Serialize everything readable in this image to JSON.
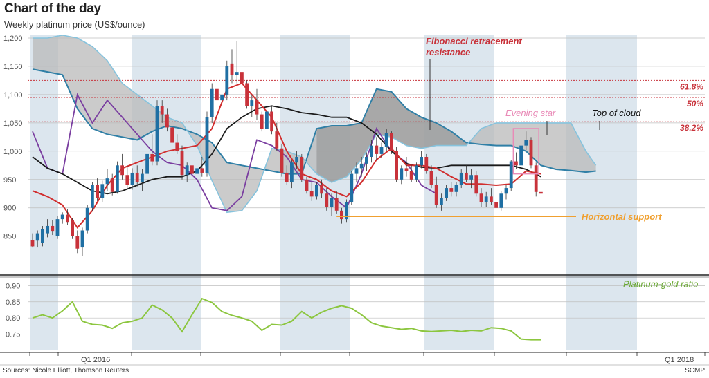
{
  "header": {
    "title": "Chart of the day",
    "subtitle": "Weekly platinum price (US$/ounce)"
  },
  "footer": {
    "sources": "Sources: Nicole Elliott, Thomson Reuters",
    "credit": "SCMP"
  },
  "colors": {
    "shade_band": "#dce6ee",
    "cloud_fill": "#b9b9b9",
    "cloud_dark": "#8c8c8c",
    "cloud_edge": "#2f7fa6",
    "cloud_edge_light": "#86c3dd",
    "candle_up": "#1f6fa3",
    "candle_down": "#c8323a",
    "red_line": "#d12e2e",
    "black_line": "#1a1a1a",
    "purple_line": "#7a3ea0",
    "fib_line": "#c8323a",
    "support": "#f0a030",
    "ratio": "#8cc63f",
    "evening_star": "#e98ab7"
  },
  "chart_data": [
    {
      "type": "line",
      "title": "Weekly platinum price (US$/ounce)",
      "ylim": [
        813,
        1200
      ],
      "yticks": [
        850,
        900,
        950,
        "1,000",
        "1,050",
        "1,100",
        "1,150",
        "1,200"
      ],
      "xticks": [
        "Q1 2016",
        "Q1 2018"
      ],
      "n_weeks": 113,
      "candles": [
        [
          0,
          843,
          855,
          830,
          832
        ],
        [
          1,
          842,
          860,
          830,
          855
        ],
        [
          2,
          838,
          868,
          832,
          862
        ],
        [
          3,
          855,
          880,
          848,
          868
        ],
        [
          4,
          868,
          878,
          852,
          858
        ],
        [
          5,
          850,
          885,
          845,
          880
        ],
        [
          6,
          880,
          892,
          872,
          888
        ],
        [
          7,
          888,
          898,
          870,
          875
        ],
        [
          8,
          878,
          882,
          845,
          850
        ],
        [
          9,
          850,
          860,
          820,
          828
        ],
        [
          10,
          830,
          865,
          815,
          860
        ],
        [
          11,
          860,
          905,
          855,
          900
        ],
        [
          12,
          900,
          945,
          895,
          940
        ],
        [
          13,
          940,
          952,
          912,
          918
        ],
        [
          14,
          918,
          948,
          910,
          942
        ],
        [
          15,
          942,
          968,
          930,
          952
        ],
        [
          16,
          952,
          960,
          922,
          928
        ],
        [
          17,
          928,
          982,
          925,
          975
        ],
        [
          18,
          975,
          995,
          950,
          958
        ],
        [
          19,
          958,
          975,
          935,
          940
        ],
        [
          20,
          940,
          970,
          932,
          962
        ],
        [
          21,
          962,
          975,
          938,
          945
        ],
        [
          22,
          945,
          968,
          930,
          960
        ],
        [
          23,
          960,
          1000,
          955,
          995
        ],
        [
          24,
          995,
          1030,
          975,
          982
        ],
        [
          25,
          982,
          1090,
          975,
          1080
        ],
        [
          26,
          1080,
          1090,
          1050,
          1065
        ],
        [
          27,
          1065,
          1075,
          1035,
          1042
        ],
        [
          28,
          1042,
          1050,
          1010,
          1015
        ],
        [
          29,
          1015,
          1030,
          995,
          1000
        ],
        [
          30,
          1000,
          1010,
          950,
          958
        ],
        [
          31,
          958,
          980,
          945,
          975
        ],
        [
          32,
          975,
          990,
          952,
          960
        ],
        [
          33,
          960,
          980,
          948,
          970
        ],
        [
          34,
          970,
          990,
          955,
          962
        ],
        [
          35,
          962,
          1070,
          955,
          1060
        ],
        [
          36,
          1060,
          1120,
          1050,
          1110
        ],
        [
          37,
          1110,
          1130,
          1080,
          1090
        ],
        [
          38,
          1090,
          1110,
          1070,
          1100
        ],
        [
          39,
          1100,
          1160,
          1090,
          1150
        ],
        [
          40,
          1155,
          1180,
          1120,
          1135
        ],
        [
          41,
          1135,
          1195,
          1120,
          1140
        ],
        [
          42,
          1140,
          1155,
          1110,
          1120
        ],
        [
          43,
          1120,
          1125,
          1075,
          1080
        ],
        [
          44,
          1080,
          1100,
          1060,
          1090
        ],
        [
          45,
          1090,
          1110,
          1055,
          1065
        ],
        [
          46,
          1065,
          1070,
          1035,
          1040
        ],
        [
          47,
          1040,
          1075,
          1030,
          1070
        ],
        [
          48,
          1070,
          1080,
          1030,
          1035
        ],
        [
          49,
          1035,
          1050,
          1000,
          1005
        ],
        [
          50,
          1005,
          1012,
          955,
          962
        ],
        [
          51,
          962,
          975,
          940,
          945
        ],
        [
          52,
          945,
          985,
          935,
          980
        ],
        [
          53,
          980,
          1000,
          968,
          990
        ],
        [
          54,
          990,
          995,
          945,
          950
        ],
        [
          55,
          950,
          955,
          925,
          930
        ],
        [
          56,
          930,
          945,
          912,
          920
        ],
        [
          57,
          920,
          945,
          915,
          940
        ],
        [
          58,
          940,
          950,
          918,
          925
        ],
        [
          59,
          925,
          935,
          895,
          902
        ],
        [
          60,
          902,
          925,
          885,
          918
        ],
        [
          61,
          918,
          930,
          890,
          895
        ],
        [
          62,
          895,
          900,
          872,
          880
        ],
        [
          63,
          880,
          915,
          875,
          910
        ],
        [
          64,
          910,
          965,
          905,
          960
        ],
        [
          65,
          960,
          980,
          945,
          970
        ],
        [
          66,
          970,
          990,
          955,
          978
        ],
        [
          67,
          978,
          998,
          965,
          990
        ],
        [
          68,
          990,
          1020,
          980,
          1010
        ],
        [
          69,
          1010,
          1025,
          985,
          995
        ],
        [
          70,
          995,
          1015,
          988,
          1008
        ],
        [
          71,
          1008,
          1040,
          1000,
          1032
        ],
        [
          72,
          1032,
          1035,
          995,
          1000
        ],
        [
          73,
          1000,
          1008,
          945,
          950
        ],
        [
          74,
          950,
          975,
          942,
          970
        ],
        [
          75,
          970,
          990,
          955,
          965
        ],
        [
          76,
          965,
          975,
          945,
          950
        ],
        [
          77,
          950,
          980,
          945,
          975
        ],
        [
          78,
          975,
          1000,
          970,
          990
        ],
        [
          79,
          990,
          995,
          960,
          965
        ],
        [
          80,
          965,
          975,
          935,
          940
        ],
        [
          81,
          940,
          955,
          900,
          905
        ],
        [
          82,
          905,
          925,
          895,
          918
        ],
        [
          83,
          918,
          940,
          912,
          935
        ],
        [
          84,
          935,
          945,
          920,
          928
        ],
        [
          85,
          928,
          945,
          920,
          940
        ],
        [
          86,
          940,
          968,
          935,
          962
        ],
        [
          87,
          962,
          975,
          945,
          950
        ],
        [
          88,
          950,
          968,
          935,
          958
        ],
        [
          89,
          958,
          965,
          920,
          925
        ],
        [
          90,
          925,
          935,
          902,
          910
        ],
        [
          91,
          910,
          928,
          902,
          920
        ],
        [
          92,
          920,
          935,
          905,
          910
        ],
        [
          93,
          910,
          918,
          888,
          900
        ],
        [
          94,
          900,
          930,
          895,
          925
        ],
        [
          95,
          925,
          940,
          915,
          935
        ],
        [
          96,
          935,
          985,
          930,
          982
        ],
        [
          97,
          982,
          998,
          968,
          975
        ],
        [
          98,
          975,
          1015,
          970,
          1010
        ],
        [
          99,
          1010,
          1035,
          1002,
          1020
        ],
        [
          100,
          1020,
          1025,
          970,
          975
        ],
        [
          101,
          975,
          980,
          920,
          928
        ],
        [
          102,
          928,
          935,
          915,
          925
        ]
      ],
      "series": [
        {
          "role": "cloud_edge_a",
          "x": [
            0,
            3,
            6,
            9,
            12,
            15,
            18,
            21,
            24,
            27,
            30,
            33,
            36,
            39,
            42,
            45,
            48,
            51,
            54,
            57,
            60,
            63,
            66,
            69,
            72,
            75,
            78,
            81,
            84,
            87,
            90,
            93,
            96,
            99,
            102,
            105,
            108,
            111,
            113
          ],
          "values": [
            1145,
            1140,
            1135,
            1075,
            1040,
            1030,
            1025,
            1020,
            1035,
            1045,
            1040,
            1030,
            1015,
            980,
            975,
            970,
            965,
            960,
            960,
            1040,
            1045,
            1045,
            1050,
            1110,
            1105,
            1075,
            1060,
            1050,
            1035,
            1015,
            1012,
            1010,
            1010,
            1000,
            975,
            968,
            966,
            963,
            965
          ]
        },
        {
          "role": "cloud_edge_b",
          "x": [
            0,
            3,
            6,
            9,
            12,
            15,
            18,
            21,
            24,
            27,
            30,
            33,
            36,
            39,
            42,
            45,
            48,
            51,
            54,
            57,
            60,
            63,
            66,
            69,
            72,
            75,
            78,
            81,
            84,
            87,
            90,
            93,
            96,
            99,
            102,
            105,
            108,
            111,
            113
          ],
          "values": [
            1200,
            1200,
            1205,
            1200,
            1185,
            1160,
            1120,
            1100,
            1080,
            1060,
            1050,
            1010,
            948,
            892,
            895,
            930,
            1005,
            1000,
            990,
            960,
            945,
            955,
            985,
            1030,
            1025,
            1010,
            1005,
            1010,
            1010,
            1010,
            1040,
            1050,
            1050,
            1050,
            1050,
            1050,
            1050,
            1000,
            975
          ]
        },
        {
          "role": "black_line",
          "x": [
            0,
            3,
            6,
            9,
            12,
            15,
            18,
            21,
            24,
            27,
            30,
            33,
            36,
            39,
            42,
            45,
            48,
            51,
            54,
            57,
            60,
            63,
            66,
            69,
            72,
            75,
            78,
            81,
            84,
            87,
            90,
            93,
            96,
            99,
            102
          ],
          "values": [
            990,
            970,
            960,
            945,
            930,
            925,
            930,
            940,
            950,
            955,
            955,
            965,
            995,
            1040,
            1060,
            1075,
            1080,
            1075,
            1068,
            1065,
            1060,
            1060,
            1050,
            1030,
            1000,
            978,
            972,
            970,
            975,
            975,
            975,
            975,
            975,
            968,
            955
          ]
        },
        {
          "role": "red_line",
          "x": [
            0,
            3,
            6,
            9,
            12,
            15,
            18,
            21,
            24,
            27,
            30,
            33,
            36,
            39,
            42,
            45,
            48,
            51,
            54,
            57,
            60,
            63,
            66,
            69,
            72,
            75,
            78,
            81,
            84,
            87,
            90,
            93,
            96,
            99,
            102
          ],
          "values": [
            930,
            920,
            905,
            865,
            895,
            940,
            970,
            980,
            990,
            1000,
            1005,
            1010,
            1040,
            1110,
            1120,
            1090,
            1060,
            1000,
            960,
            950,
            930,
            920,
            945,
            985,
            1005,
            975,
            975,
            970,
            955,
            942,
            942,
            940,
            942,
            965,
            960
          ]
        },
        {
          "role": "purple_line",
          "x": [
            0,
            3,
            6,
            9,
            12,
            15,
            18,
            21,
            24,
            27,
            30,
            33,
            36,
            39,
            42,
            45,
            48,
            51,
            54,
            57,
            60,
            63,
            66,
            69,
            72,
            75,
            78,
            81
          ],
          "values": [
            1035,
            970,
            960,
            1100,
            1050,
            1090,
            1060,
            1030,
            1000,
            980,
            975,
            950,
            900,
            895,
            920,
            1020,
            1010,
            990,
            950,
            945,
            920,
            900,
            960,
            1040,
            1000,
            980,
            940,
            925
          ]
        },
        {
          "role": "platinum_gold_ratio",
          "x": [
            0,
            2,
            4,
            6,
            8,
            10,
            12,
            14,
            16,
            18,
            20,
            22,
            24,
            26,
            28,
            30,
            32,
            34,
            36,
            38,
            40,
            42,
            44,
            46,
            48,
            50,
            52,
            54,
            56,
            58,
            60,
            62,
            64,
            66,
            68,
            70,
            72,
            74,
            76,
            78,
            80,
            82,
            84,
            86,
            88,
            90,
            92,
            94,
            96,
            98,
            100,
            102
          ],
          "values": [
            0.8,
            0.81,
            0.8,
            0.822,
            0.85,
            0.79,
            0.78,
            0.778,
            0.768,
            0.785,
            0.79,
            0.8,
            0.84,
            0.825,
            0.8,
            0.758,
            0.81,
            0.86,
            0.848,
            0.82,
            0.808,
            0.8,
            0.79,
            0.762,
            0.78,
            0.778,
            0.79,
            0.82,
            0.8,
            0.818,
            0.83,
            0.838,
            0.83,
            0.81,
            0.785,
            0.775,
            0.77,
            0.765,
            0.768,
            0.76,
            0.758,
            0.76,
            0.762,
            0.758,
            0.762,
            0.76,
            0.77,
            0.768,
            0.76,
            0.735,
            0.733,
            0.733
          ]
        }
      ]
    },
    {
      "type": "line",
      "title": "",
      "ylim": [
        0.7,
        0.92
      ],
      "yticks": [
        "0.90",
        "0.85",
        "0.80",
        "0.75"
      ]
    }
  ],
  "annotations": {
    "fib_title": "Fibonacci retracement",
    "fib_title2": "resistance",
    "fib_levels": [
      {
        "label": "61.8%",
        "value": 1125
      },
      {
        "label": "50%",
        "value": 1095
      },
      {
        "label": "38.2%",
        "value": 1052
      }
    ],
    "evening_star": "Evening star",
    "top_of_cloud": "Top of cloud",
    "horizontal_support": "Horizontal support",
    "support_value": 885,
    "ratio_label": "Platinum-gold ratio"
  }
}
